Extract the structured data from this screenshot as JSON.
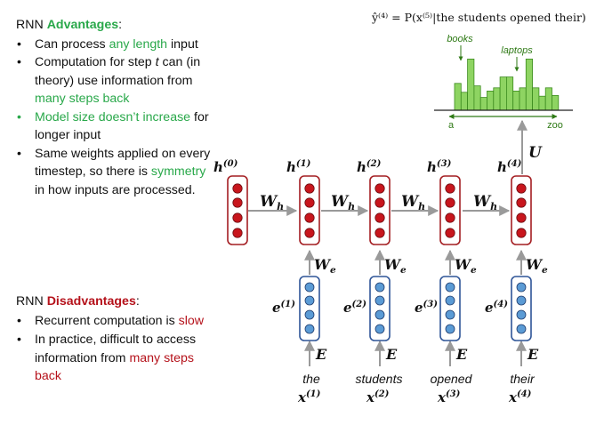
{
  "advantages": {
    "heading_prefix": "RNN ",
    "heading_word": "Advantages",
    "heading_suffix": ":",
    "items": [
      {
        "pre": "Can process ",
        "hl": "any length",
        "post": " input"
      },
      {
        "pre": "Computation for step ",
        "it": "t",
        "mid": " can (in theory) use information from ",
        "hl": "many steps back",
        "post": ""
      },
      {
        "hl": "Model size doesn’t increase",
        "post": " for longer input"
      },
      {
        "pre": "Same weights applied on every timestep, so there is ",
        "hl": "symmetry",
        "post": " in how inputs are processed."
      }
    ]
  },
  "disadvantages": {
    "heading_prefix": "RNN ",
    "heading_word": "Disadvantages",
    "heading_suffix": ":",
    "items": [
      {
        "pre": "Recurrent computation is ",
        "hl": "slow",
        "post": ""
      },
      {
        "pre": "In practice, difficult to access information from ",
        "hl": "many steps back",
        "post": ""
      }
    ]
  },
  "diagram": {
    "formula": "ŷ⁽⁴⁾ = P(x⁽⁵⁾|the students opened their)",
    "output_weight": "U",
    "hidden_weight": "W",
    "hidden_weight_sub": "h",
    "embed_weight": "W",
    "embed_weight_sub": "e",
    "input_weight": "E",
    "hidden_labels": [
      "h",
      "h",
      "h",
      "h",
      "h"
    ],
    "hidden_sups": [
      "(0)",
      "(1)",
      "(2)",
      "(3)",
      "(4)"
    ],
    "embed_labels": [
      "e",
      "e",
      "e",
      "e"
    ],
    "embed_sups": [
      "(1)",
      "(2)",
      "(3)",
      "(4)"
    ],
    "words": [
      "the",
      "students",
      "opened",
      "their"
    ],
    "x_labels": [
      "x",
      "x",
      "x",
      "x"
    ],
    "x_sups": [
      "(1)",
      "(2)",
      "(3)",
      "(4)"
    ],
    "histogram": {
      "left_label": "a",
      "right_label": "zoo",
      "annot_left": "books",
      "annot_right": "laptops",
      "values": [
        0.42,
        0.28,
        0.8,
        0.38,
        0.2,
        0.3,
        0.35,
        0.52,
        0.52,
        0.3,
        0.35,
        0.8,
        0.35,
        0.22,
        0.35,
        0.23
      ]
    }
  },
  "colors": {
    "accent_green": "#29a84a",
    "accent_red": "#b5121b",
    "hidden_border": "#a41e22",
    "hidden_node": "#c8161d",
    "embed_border": "#2f5597",
    "embed_node": "#5b9bd5",
    "bar_fill": "#8ed462",
    "bar_border": "#3c8b1e",
    "arrow": "#9a9a9a"
  }
}
